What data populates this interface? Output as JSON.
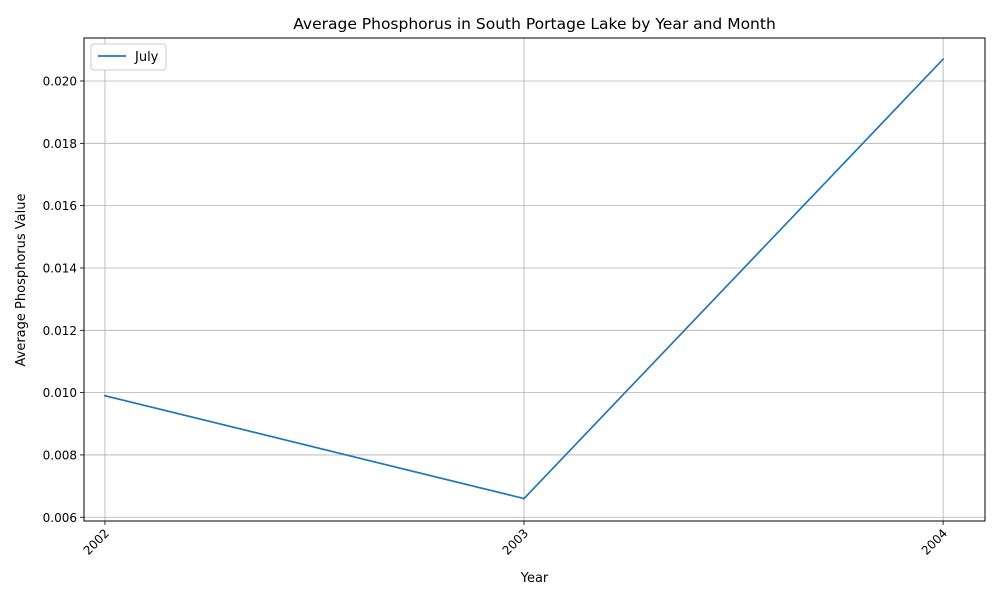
{
  "chart_data": {
    "type": "line",
    "title": "Average Phosphorus in South Portage Lake by Year and Month",
    "xlabel": "Year",
    "ylabel": "Average Phosphorus Value",
    "categories": [
      "2002",
      "2003",
      "2004"
    ],
    "x": [
      2002,
      2003,
      2004
    ],
    "series": [
      {
        "name": "July",
        "color": "#1f77b4",
        "values": [
          0.0099,
          0.0066,
          0.0207
        ]
      }
    ],
    "xlim": [
      2001.95,
      2004.1
    ],
    "ylim": [
      0.00588,
      0.02138
    ],
    "yticks": [
      0.006,
      0.008,
      0.01,
      0.012,
      0.014,
      0.016,
      0.018,
      0.02
    ],
    "ytick_labels": [
      "0.006",
      "0.008",
      "0.010",
      "0.012",
      "0.014",
      "0.016",
      "0.018",
      "0.020"
    ],
    "grid": true,
    "legend_position": "top-left",
    "x_tick_rotation": "45"
  }
}
